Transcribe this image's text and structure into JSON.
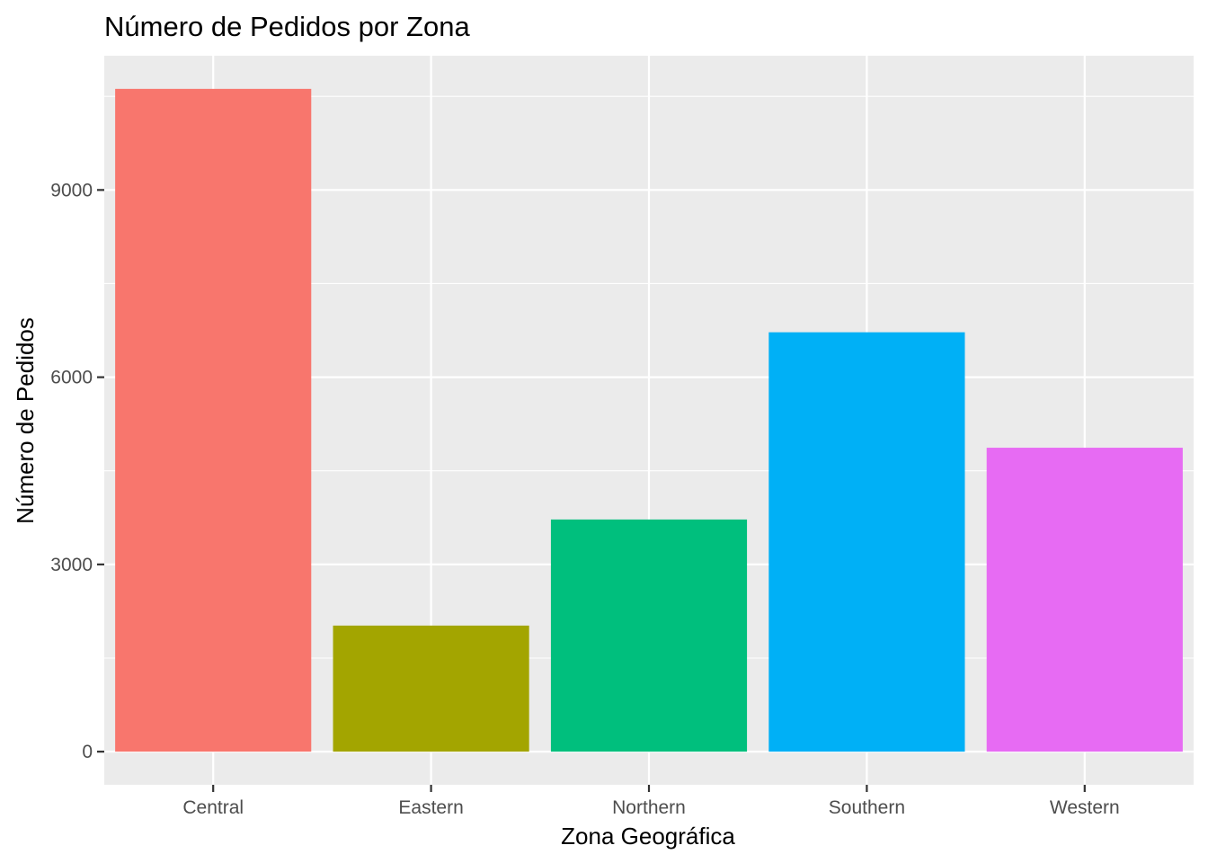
{
  "chart_data": {
    "type": "bar",
    "title": "Número de Pedidos por Zona",
    "xlabel": "Zona Geográfica",
    "ylabel": "Número de Pedidos",
    "categories": [
      "Central",
      "Eastern",
      "Northern",
      "Southern",
      "Western"
    ],
    "values": [
      10620,
      2020,
      3720,
      6720,
      4870
    ],
    "colors": [
      "#F8766D",
      "#A3A500",
      "#00BF7D",
      "#00B0F6",
      "#E76BF3"
    ],
    "yticks": [
      0,
      3000,
      6000,
      9000
    ],
    "ytick_labels": [
      "0",
      "3000",
      "6000",
      "9000"
    ],
    "ylim": [
      -531,
      11151
    ],
    "grid": true,
    "panel_background": "#EBEBEB",
    "grid_color": "#FFFFFF"
  }
}
